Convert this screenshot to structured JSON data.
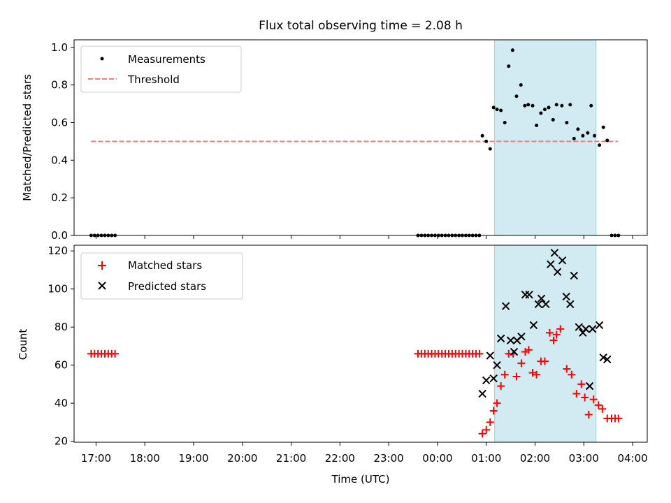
{
  "figure": {
    "title": "Flux total observing time = 2.08 h",
    "x_label": "Time (UTC)",
    "x_ticks": [
      "17:00",
      "18:00",
      "19:00",
      "20:00",
      "21:00",
      "22:00",
      "23:00",
      "00:00",
      "01:00",
      "02:00",
      "03:00",
      "04:00"
    ]
  },
  "colors": {
    "measurements": "#000000",
    "threshold": "#f08080",
    "matched": "#ff0000",
    "predicted": "#000000",
    "span": "#add8e6"
  },
  "chart_data": [
    {
      "type": "scatter",
      "ylabel": "Matched/Predicted stars",
      "xlim": [
        16.55,
        28.3
      ],
      "ylim": [
        0,
        1.04
      ],
      "y_ticks": [
        "0.0",
        "0.2",
        "0.4",
        "0.6",
        "0.8",
        "1.0"
      ],
      "span": [
        25.17,
        27.25
      ],
      "legend": {
        "placement": "top-left",
        "entries": [
          "Measurements",
          "Threshold"
        ]
      },
      "threshold": {
        "name": "Threshold",
        "x": [
          16.9,
          27.7
        ],
        "y": 0.5
      },
      "series": [
        {
          "name": "Measurements",
          "marker": "dot",
          "points": [
            [
              16.9,
              0
            ],
            [
              16.97,
              0
            ],
            [
              17.04,
              0
            ],
            [
              17.11,
              0
            ],
            [
              17.18,
              0
            ],
            [
              17.25,
              0
            ],
            [
              17.32,
              0
            ],
            [
              17.39,
              0
            ],
            [
              23.6,
              0
            ],
            [
              23.67,
              0
            ],
            [
              23.74,
              0
            ],
            [
              23.81,
              0
            ],
            [
              23.88,
              0
            ],
            [
              23.95,
              0
            ],
            [
              24.02,
              0
            ],
            [
              24.09,
              0
            ],
            [
              24.16,
              0
            ],
            [
              24.23,
              0
            ],
            [
              24.3,
              0
            ],
            [
              24.37,
              0
            ],
            [
              24.44,
              0
            ],
            [
              24.51,
              0
            ],
            [
              24.58,
              0
            ],
            [
              24.65,
              0
            ],
            [
              24.72,
              0
            ],
            [
              24.79,
              0
            ],
            [
              24.86,
              0
            ],
            [
              24.92,
              0.53
            ],
            [
              25.0,
              0.5
            ],
            [
              25.08,
              0.46
            ],
            [
              25.15,
              0.68
            ],
            [
              25.22,
              0.67
            ],
            [
              25.3,
              0.665
            ],
            [
              25.38,
              0.6
            ],
            [
              25.46,
              0.9
            ],
            [
              25.54,
              0.985
            ],
            [
              25.62,
              0.74
            ],
            [
              25.71,
              0.8
            ],
            [
              25.79,
              0.69
            ],
            [
              25.86,
              0.695
            ],
            [
              25.95,
              0.69
            ],
            [
              26.03,
              0.585
            ],
            [
              26.12,
              0.65
            ],
            [
              26.2,
              0.67
            ],
            [
              26.28,
              0.68
            ],
            [
              26.37,
              0.615
            ],
            [
              26.44,
              0.695
            ],
            [
              26.55,
              0.69
            ],
            [
              26.65,
              0.6
            ],
            [
              26.72,
              0.695
            ],
            [
              26.8,
              0.515
            ],
            [
              26.88,
              0.565
            ],
            [
              26.98,
              0.53
            ],
            [
              27.08,
              0.545
            ],
            [
              27.15,
              0.69
            ],
            [
              27.22,
              0.53
            ],
            [
              27.32,
              0.48
            ],
            [
              27.4,
              0.575
            ],
            [
              27.48,
              0.505
            ],
            [
              27.57,
              0
            ],
            [
              27.64,
              0
            ],
            [
              27.71,
              0
            ]
          ]
        }
      ]
    },
    {
      "type": "scatter",
      "ylabel": "Count",
      "xlim": [
        16.55,
        28.3
      ],
      "ylim": [
        19.5,
        123
      ],
      "y_ticks": [
        "20",
        "40",
        "60",
        "80",
        "100",
        "120"
      ],
      "span": [
        25.17,
        27.25
      ],
      "legend": {
        "placement": "top-left",
        "entries": [
          "Matched stars",
          "Predicted stars"
        ]
      },
      "series": [
        {
          "name": "Matched stars",
          "marker": "plus",
          "points": [
            [
              16.9,
              66
            ],
            [
              16.97,
              66
            ],
            [
              17.04,
              66
            ],
            [
              17.11,
              66
            ],
            [
              17.18,
              66
            ],
            [
              17.25,
              66
            ],
            [
              17.32,
              66
            ],
            [
              17.39,
              66
            ],
            [
              23.6,
              66
            ],
            [
              23.67,
              66
            ],
            [
              23.74,
              66
            ],
            [
              23.81,
              66
            ],
            [
              23.88,
              66
            ],
            [
              23.95,
              66
            ],
            [
              24.02,
              66
            ],
            [
              24.09,
              66
            ],
            [
              24.16,
              66
            ],
            [
              24.23,
              66
            ],
            [
              24.3,
              66
            ],
            [
              24.37,
              66
            ],
            [
              24.44,
              66
            ],
            [
              24.51,
              66
            ],
            [
              24.58,
              66
            ],
            [
              24.65,
              66
            ],
            [
              24.72,
              66
            ],
            [
              24.79,
              66
            ],
            [
              24.86,
              66
            ],
            [
              24.92,
              24
            ],
            [
              25.0,
              26
            ],
            [
              25.08,
              30
            ],
            [
              25.15,
              36
            ],
            [
              25.22,
              40
            ],
            [
              25.3,
              49
            ],
            [
              25.38,
              55
            ],
            [
              25.46,
              66
            ],
            [
              25.55,
              66
            ],
            [
              25.62,
              54
            ],
            [
              25.72,
              61
            ],
            [
              25.8,
              67
            ],
            [
              25.87,
              68
            ],
            [
              25.95,
              56
            ],
            [
              26.03,
              55
            ],
            [
              26.12,
              62
            ],
            [
              26.2,
              62
            ],
            [
              26.3,
              77
            ],
            [
              26.38,
              73
            ],
            [
              26.44,
              76
            ],
            [
              26.52,
              79
            ],
            [
              26.65,
              58
            ],
            [
              26.75,
              55
            ],
            [
              26.85,
              45
            ],
            [
              26.95,
              50
            ],
            [
              27.02,
              43
            ],
            [
              27.1,
              34
            ],
            [
              27.2,
              42
            ],
            [
              27.3,
              39
            ],
            [
              27.38,
              37
            ],
            [
              27.48,
              32
            ],
            [
              27.57,
              32
            ],
            [
              27.64,
              32
            ],
            [
              27.71,
              32
            ]
          ]
        },
        {
          "name": "Predicted stars",
          "marker": "x",
          "points": [
            [
              24.92,
              45
            ],
            [
              25.0,
              52
            ],
            [
              25.08,
              65
            ],
            [
              25.15,
              53
            ],
            [
              25.22,
              60
            ],
            [
              25.3,
              74
            ],
            [
              25.4,
              91
            ],
            [
              25.5,
              73
            ],
            [
              25.57,
              67
            ],
            [
              25.63,
              73
            ],
            [
              25.72,
              75
            ],
            [
              25.8,
              97
            ],
            [
              25.88,
              97
            ],
            [
              25.97,
              81
            ],
            [
              26.07,
              92
            ],
            [
              26.13,
              95
            ],
            [
              26.22,
              92
            ],
            [
              26.32,
              113
            ],
            [
              26.4,
              119
            ],
            [
              26.46,
              109
            ],
            [
              26.56,
              115
            ],
            [
              26.64,
              96
            ],
            [
              26.72,
              92
            ],
            [
              26.8,
              107
            ],
            [
              26.9,
              80
            ],
            [
              26.98,
              77
            ],
            [
              27.04,
              79
            ],
            [
              27.12,
              49
            ],
            [
              27.18,
              79
            ],
            [
              27.32,
              81
            ],
            [
              27.4,
              64
            ],
            [
              27.48,
              63
            ]
          ]
        }
      ]
    }
  ]
}
